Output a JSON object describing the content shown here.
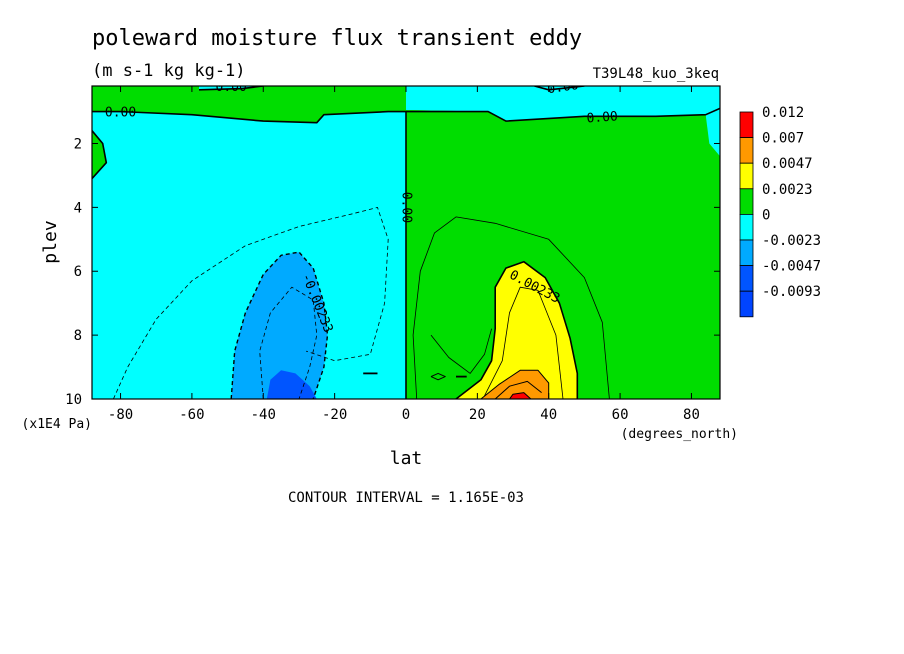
{
  "chart_data": {
    "type": "heatmap",
    "title": "poleward moisture flux transient eddy",
    "units": "(m s-1 kg kg-1)",
    "run_label": "T39L48_kuo_3keq",
    "xlabel": "lat",
    "xunits": "(degrees_north)",
    "ylabel": "plev",
    "yunits": "(x1E4 Pa)",
    "footer": "CONTOUR INTERVAL = 1.165E-03",
    "xlim": [
      -88,
      88
    ],
    "ylim": [
      0.2,
      10
    ],
    "y_inverted": true,
    "x_ticks": [
      -80,
      -60,
      -40,
      -20,
      0,
      20,
      40,
      60,
      80
    ],
    "y_ticks": [
      2,
      4,
      6,
      8,
      10
    ],
    "colorbar": {
      "levels": [
        {
          "label": "0.012",
          "color": "#ff0000"
        },
        {
          "label": "0.007",
          "color": "#ff9900"
        },
        {
          "label": "0.0047",
          "color": "#ffff00"
        },
        {
          "label": "0.0023",
          "color": "#00dd00"
        },
        {
          "label": "0",
          "color": "#00ffff"
        },
        {
          "label": "-0.0023",
          "color": "#00aaff"
        },
        {
          "label": "-0.0047",
          "color": "#0055ff"
        },
        {
          "label": "-0.0093",
          "color": ""
        }
      ]
    },
    "contour_labels": [
      {
        "text": "0.00",
        "lat": -49,
        "plev": 0.25,
        "rotate": 0
      },
      {
        "text": "0.00",
        "lat": -80,
        "plev": 1.05,
        "rotate": 0
      },
      {
        "text": "0.00",
        "lat": 44,
        "plev": 0.25,
        "rotate": -8
      },
      {
        "text": "0.00",
        "lat": 55,
        "plev": 1.2,
        "rotate": -4
      },
      {
        "text": "0.00",
        "lat": 0,
        "plev": 4.0,
        "rotate": 90
      },
      {
        "text": "-0.00233",
        "lat": -25,
        "plev": 7.0,
        "rotate": 68
      },
      {
        "text": "0.00233",
        "lat": 36,
        "plev": 6.5,
        "rotate": 28
      }
    ],
    "regions": [
      {
        "color": "#00dd00",
        "pts": [
          [
            -88,
            0.2
          ],
          [
            0,
            0.2
          ],
          [
            0,
            10
          ],
          [
            -88,
            10
          ]
        ]
      },
      {
        "color": "#00ffff",
        "pts": [
          [
            -88,
            1.0
          ],
          [
            -80,
            1.0
          ],
          [
            -60,
            1.1
          ],
          [
            -40,
            1.3
          ],
          [
            -25,
            1.35
          ],
          [
            -23,
            1.1
          ],
          [
            -5,
            1.0
          ],
          [
            0,
            1.0
          ],
          [
            0,
            10
          ],
          [
            -88,
            10
          ],
          [
            -88,
            3.1
          ],
          [
            -84,
            2.6
          ],
          [
            -85,
            2.0
          ],
          [
            -88,
            1.6
          ]
        ]
      },
      {
        "color": "#00ffff",
        "pts": [
          [
            0,
            0.2
          ],
          [
            88,
            0.2
          ],
          [
            88,
            1.1
          ],
          [
            70,
            1.15
          ],
          [
            50,
            1.15
          ],
          [
            28,
            1.3
          ],
          [
            23,
            1.0
          ],
          [
            0,
            0.95
          ]
        ]
      },
      {
        "color": "#00dd00",
        "pts": [
          [
            0,
            0.95
          ],
          [
            23,
            1.0
          ],
          [
            28,
            1.3
          ],
          [
            50,
            1.15
          ],
          [
            70,
            1.15
          ],
          [
            88,
            1.1
          ],
          [
            88,
            10
          ],
          [
            0,
            10
          ]
        ]
      },
      {
        "color": "#00ffff",
        "pts": [
          [
            84,
            1.1
          ],
          [
            88,
            0.9
          ],
          [
            88,
            2.4
          ],
          [
            85,
            2.0
          ]
        ]
      },
      {
        "color": "#00ffff",
        "pts": [
          [
            -58,
            0.32
          ],
          [
            -46,
            0.28
          ],
          [
            -40,
            0.2
          ],
          [
            -58,
            0.2
          ]
        ]
      },
      {
        "color": "#00ffff",
        "pts": [
          [
            40,
            0.32
          ],
          [
            45,
            0.26
          ],
          [
            50,
            0.2
          ],
          [
            36,
            0.2
          ]
        ]
      },
      {
        "color": "#00aaff",
        "pts": [
          [
            -49,
            10
          ],
          [
            -48,
            8.5
          ],
          [
            -45,
            7.3
          ],
          [
            -40,
            6.1
          ],
          [
            -35,
            5.5
          ],
          [
            -30,
            5.4
          ],
          [
            -26,
            5.9
          ],
          [
            -23,
            7.0
          ],
          [
            -22,
            8.0
          ],
          [
            -23,
            9.0
          ],
          [
            -26,
            10
          ]
        ]
      },
      {
        "color": "#0055ff",
        "pts": [
          [
            -39,
            10
          ],
          [
            -38,
            9.4
          ],
          [
            -35,
            9.1
          ],
          [
            -31,
            9.2
          ],
          [
            -27,
            9.6
          ],
          [
            -25,
            10
          ]
        ]
      },
      {
        "color": "#ffff00",
        "pts": [
          [
            14,
            10
          ],
          [
            21,
            9.4
          ],
          [
            24,
            8.8
          ],
          [
            25,
            7.8
          ],
          [
            25,
            6.5
          ],
          [
            28,
            5.9
          ],
          [
            33,
            5.7
          ],
          [
            39,
            6.2
          ],
          [
            43,
            7.0
          ],
          [
            46,
            8.1
          ],
          [
            48,
            9.2
          ],
          [
            48,
            10
          ]
        ]
      },
      {
        "color": "#ff9900",
        "pts": [
          [
            21,
            10
          ],
          [
            26,
            9.55
          ],
          [
            32,
            9.1
          ],
          [
            37,
            9.1
          ],
          [
            40,
            9.5
          ],
          [
            40,
            10
          ]
        ]
      },
      {
        "color": "#ff0000",
        "pts": [
          [
            29,
            10
          ],
          [
            30,
            9.85
          ],
          [
            33,
            9.8
          ],
          [
            35,
            10
          ]
        ]
      }
    ],
    "contour_lines": [
      {
        "dash": true,
        "width": 0.8,
        "pts": [
          [
            -82,
            10
          ],
          [
            -78,
            9.0
          ],
          [
            -70,
            7.5
          ],
          [
            -60,
            6.3
          ],
          [
            -45,
            5.2
          ],
          [
            -30,
            4.6
          ],
          [
            -15,
            4.2
          ],
          [
            -8,
            4.0
          ],
          [
            -5,
            5.0
          ],
          [
            -6,
            7.0
          ],
          [
            -10,
            8.6
          ],
          [
            -20,
            8.8
          ],
          [
            -28,
            8.5
          ]
        ]
      },
      {
        "dash": true,
        "width": 0.8,
        "pts": [
          [
            -40,
            10
          ],
          [
            -41,
            8.5
          ],
          [
            -38,
            7.3
          ],
          [
            -32,
            6.5
          ],
          [
            -26,
            6.9
          ],
          [
            -25,
            8.0
          ],
          [
            -27,
            9.0
          ],
          [
            -30,
            10
          ]
        ]
      },
      {
        "dash": true,
        "width": 1.4,
        "pts": [
          [
            -49,
            10
          ],
          [
            -48,
            8.5
          ],
          [
            -45,
            7.3
          ],
          [
            -40,
            6.1
          ],
          [
            -35,
            5.5
          ],
          [
            -30,
            5.4
          ],
          [
            -26,
            5.9
          ],
          [
            -23,
            7.0
          ],
          [
            -22,
            8.0
          ],
          [
            -23,
            9.0
          ],
          [
            -26,
            10
          ]
        ]
      },
      {
        "dash": false,
        "width": 1.6,
        "pts": [
          [
            -88,
            1.6
          ],
          [
            -85,
            2.0
          ],
          [
            -84,
            2.6
          ],
          [
            -88,
            3.1
          ]
        ]
      },
      {
        "dash": false,
        "width": 1.6,
        "pts": [
          [
            -88,
            1.0
          ],
          [
            -80,
            1.0
          ],
          [
            -60,
            1.1
          ],
          [
            -40,
            1.3
          ],
          [
            -25,
            1.35
          ],
          [
            -23,
            1.1
          ],
          [
            -5,
            1.0
          ],
          [
            0,
            1.0
          ],
          [
            23,
            1.0
          ],
          [
            28,
            1.3
          ],
          [
            50,
            1.15
          ],
          [
            70,
            1.15
          ],
          [
            84,
            1.1
          ],
          [
            88,
            0.9
          ]
        ]
      },
      {
        "dash": false,
        "width": 1.6,
        "pts": [
          [
            -58,
            0.32
          ],
          [
            -46,
            0.28
          ],
          [
            -40,
            0.2
          ]
        ]
      },
      {
        "dash": false,
        "width": 1.6,
        "pts": [
          [
            36,
            0.2
          ],
          [
            40,
            0.32
          ],
          [
            45,
            0.26
          ],
          [
            50,
            0.2
          ]
        ]
      },
      {
        "dash": false,
        "width": 1.6,
        "pts": [
          [
            0,
            1.0
          ],
          [
            0,
            10
          ]
        ]
      },
      {
        "dash": false,
        "width": 0.8,
        "pts": [
          [
            3,
            10
          ],
          [
            2,
            8.0
          ],
          [
            4,
            6.0
          ],
          [
            8,
            4.8
          ],
          [
            14,
            4.3
          ],
          [
            25,
            4.5
          ],
          [
            40,
            5.0
          ],
          [
            50,
            6.2
          ],
          [
            55,
            7.6
          ],
          [
            57,
            10
          ]
        ]
      },
      {
        "dash": false,
        "width": 0.8,
        "pts": [
          [
            7,
            8.0
          ],
          [
            12,
            8.7
          ],
          [
            18,
            9.2
          ],
          [
            22,
            8.6
          ],
          [
            24,
            7.8
          ]
        ]
      },
      {
        "dash": false,
        "width": 0.8,
        "pts": [
          [
            22,
            9.9
          ],
          [
            27,
            8.8
          ],
          [
            29,
            7.3
          ],
          [
            32,
            6.5
          ],
          [
            37,
            6.6
          ],
          [
            42,
            8.0
          ],
          [
            44,
            10
          ]
        ]
      },
      {
        "dash": false,
        "width": 1.6,
        "pts": [
          [
            14,
            10
          ],
          [
            21,
            9.4
          ],
          [
            24,
            8.8
          ],
          [
            25,
            7.8
          ],
          [
            25,
            6.5
          ],
          [
            28,
            5.9
          ],
          [
            33,
            5.7
          ],
          [
            39,
            6.2
          ],
          [
            43,
            7.0
          ],
          [
            46,
            8.1
          ],
          [
            48,
            9.2
          ],
          [
            48,
            10
          ]
        ]
      },
      {
        "dash": false,
        "width": 1.0,
        "pts": [
          [
            21,
            10
          ],
          [
            26,
            9.55
          ],
          [
            32,
            9.1
          ],
          [
            37,
            9.1
          ],
          [
            40,
            9.5
          ],
          [
            40,
            10
          ]
        ]
      },
      {
        "dash": false,
        "width": 1.0,
        "pts": [
          [
            25,
            10
          ],
          [
            29,
            9.6
          ],
          [
            34,
            9.45
          ],
          [
            38,
            9.8
          ]
        ]
      },
      {
        "dash": false,
        "width": 1.0,
        "pts": [
          [
            29,
            10
          ],
          [
            30,
            9.85
          ],
          [
            33,
            9.8
          ],
          [
            35,
            10
          ]
        ]
      },
      {
        "dash": false,
        "width": 1.8,
        "pts": [
          [
            -12,
            9.2
          ],
          [
            -8,
            9.2
          ]
        ]
      },
      {
        "dash": false,
        "width": 1.8,
        "pts": [
          [
            14,
            9.3
          ],
          [
            17,
            9.3
          ]
        ]
      },
      {
        "dash": false,
        "width": 1.0,
        "pts": [
          [
            7,
            9.3
          ],
          [
            9,
            9.2
          ],
          [
            11,
            9.3
          ],
          [
            9,
            9.4
          ],
          [
            7,
            9.3
          ]
        ]
      }
    ]
  }
}
